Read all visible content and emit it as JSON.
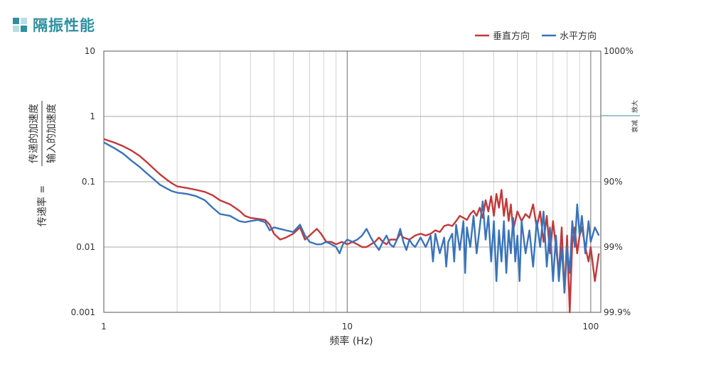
{
  "page": {
    "title": "隔振性能",
    "icon": "grid-squares-icon",
    "colors": {
      "accent": "#2f8f9f",
      "icon_dark": "#2f8f9f",
      "icon_light": "#b9dde3",
      "grid": "#c8c8c8",
      "frame": "#555555"
    }
  },
  "chart_data": {
    "type": "line",
    "title": "",
    "xlabel": "频率 (Hz)",
    "ylabel_left_top": "传递的加速度",
    "ylabel_left_bottom": "输入的加速度",
    "ylabel_left_prefix": "传递率 =",
    "xscale": "log",
    "yscale": "log",
    "xlim": [
      1,
      110
    ],
    "ylim": [
      0.001,
      10
    ],
    "grid": true,
    "legend_position": "top-right",
    "x_ticks": [
      {
        "v": 1,
        "label": "1"
      },
      {
        "v": 10,
        "label": "10"
      },
      {
        "v": 100,
        "label": "100"
      }
    ],
    "y_ticks": [
      {
        "v": 10,
        "label": "10"
      },
      {
        "v": 1,
        "label": "1"
      },
      {
        "v": 0.1,
        "label": "0.1"
      },
      {
        "v": 0.01,
        "label": "0.01"
      },
      {
        "v": 0.001,
        "label": "0.001"
      }
    ],
    "right_ticks": [
      {
        "v": 10,
        "label": "1000%"
      },
      {
        "v": 0.1,
        "label": "90%"
      },
      {
        "v": 0.01,
        "label": "99%"
      },
      {
        "v": 0.001,
        "label": "99.9%"
      }
    ],
    "amplify_label": "放大",
    "attenuate_label": "衰减",
    "series": [
      {
        "name": "垂直方向",
        "color": "#c0393b",
        "points": [
          [
            1.0,
            0.45
          ],
          [
            1.1,
            0.4
          ],
          [
            1.2,
            0.35
          ],
          [
            1.3,
            0.3
          ],
          [
            1.4,
            0.25
          ],
          [
            1.5,
            0.2
          ],
          [
            1.6,
            0.16
          ],
          [
            1.7,
            0.13
          ],
          [
            1.8,
            0.11
          ],
          [
            1.9,
            0.095
          ],
          [
            2.0,
            0.085
          ],
          [
            2.2,
            0.08
          ],
          [
            2.4,
            0.075
          ],
          [
            2.6,
            0.07
          ],
          [
            2.8,
            0.062
          ],
          [
            3.0,
            0.052
          ],
          [
            3.3,
            0.045
          ],
          [
            3.6,
            0.036
          ],
          [
            3.8,
            0.03
          ],
          [
            4.0,
            0.028
          ],
          [
            4.3,
            0.027
          ],
          [
            4.6,
            0.026
          ],
          [
            4.8,
            0.022
          ],
          [
            5.0,
            0.016
          ],
          [
            5.3,
            0.013
          ],
          [
            5.6,
            0.014
          ],
          [
            6.0,
            0.016
          ],
          [
            6.4,
            0.02
          ],
          [
            6.7,
            0.013
          ],
          [
            7.0,
            0.015
          ],
          [
            7.5,
            0.019
          ],
          [
            7.8,
            0.016
          ],
          [
            8.2,
            0.012
          ],
          [
            8.6,
            0.012
          ],
          [
            9.0,
            0.011
          ],
          [
            9.5,
            0.012
          ],
          [
            10.0,
            0.011
          ],
          [
            10.5,
            0.012
          ],
          [
            11.0,
            0.011
          ],
          [
            11.5,
            0.01
          ],
          [
            12.0,
            0.01
          ],
          [
            12.5,
            0.011
          ],
          [
            13.0,
            0.012
          ],
          [
            13.5,
            0.014
          ],
          [
            14.0,
            0.012
          ],
          [
            14.5,
            0.011
          ],
          [
            15.0,
            0.013
          ],
          [
            16.0,
            0.013
          ],
          [
            16.5,
            0.016
          ],
          [
            17.0,
            0.014
          ],
          [
            18.0,
            0.013
          ],
          [
            19.0,
            0.015
          ],
          [
            20.0,
            0.016
          ],
          [
            21.0,
            0.015
          ],
          [
            22.0,
            0.016
          ],
          [
            23.0,
            0.018
          ],
          [
            24.0,
            0.017
          ],
          [
            25.0,
            0.021
          ],
          [
            26.0,
            0.022
          ],
          [
            27.0,
            0.021
          ],
          [
            28.0,
            0.025
          ],
          [
            29.0,
            0.03
          ],
          [
            30.0,
            0.028
          ],
          [
            31.0,
            0.026
          ],
          [
            32.0,
            0.032
          ],
          [
            33.0,
            0.036
          ],
          [
            34.0,
            0.03
          ],
          [
            35.0,
            0.04
          ],
          [
            36.0,
            0.028
          ],
          [
            37.0,
            0.052
          ],
          [
            38.0,
            0.035
          ],
          [
            39.0,
            0.06
          ],
          [
            40.0,
            0.03
          ],
          [
            41.0,
            0.065
          ],
          [
            42.0,
            0.04
          ],
          [
            43.0,
            0.075
          ],
          [
            44.0,
            0.03
          ],
          [
            45.0,
            0.055
          ],
          [
            46.0,
            0.025
          ],
          [
            47.0,
            0.045
          ],
          [
            48.0,
            0.018
          ],
          [
            50.0,
            0.035
          ],
          [
            52.0,
            0.025
          ],
          [
            54.0,
            0.032
          ],
          [
            56.0,
            0.028
          ],
          [
            58.0,
            0.045
          ],
          [
            60.0,
            0.02
          ],
          [
            62.0,
            0.035
          ],
          [
            64.0,
            0.012
          ],
          [
            66.0,
            0.03
          ],
          [
            68.0,
            0.008
          ],
          [
            70.0,
            0.025
          ],
          [
            72.0,
            0.01
          ],
          [
            74.0,
            0.004
          ],
          [
            76.0,
            0.02
          ],
          [
            78.0,
            0.002
          ],
          [
            80.0,
            0.015
          ],
          [
            82.0,
            0.001
          ],
          [
            84.0,
            0.012
          ],
          [
            86.0,
            0.02
          ],
          [
            88.0,
            0.008
          ],
          [
            90.0,
            0.015
          ],
          [
            92.0,
            0.02
          ],
          [
            95.0,
            0.01
          ],
          [
            98.0,
            0.006
          ],
          [
            100.0,
            0.01
          ],
          [
            104.0,
            0.003
          ],
          [
            108.0,
            0.008
          ]
        ]
      },
      {
        "name": "水平方向",
        "color": "#3a73b8",
        "points": [
          [
            1.0,
            0.4
          ],
          [
            1.1,
            0.33
          ],
          [
            1.2,
            0.27
          ],
          [
            1.3,
            0.21
          ],
          [
            1.4,
            0.17
          ],
          [
            1.5,
            0.135
          ],
          [
            1.6,
            0.11
          ],
          [
            1.7,
            0.09
          ],
          [
            1.8,
            0.08
          ],
          [
            1.9,
            0.072
          ],
          [
            2.0,
            0.068
          ],
          [
            2.2,
            0.065
          ],
          [
            2.4,
            0.06
          ],
          [
            2.6,
            0.052
          ],
          [
            2.8,
            0.04
          ],
          [
            3.0,
            0.032
          ],
          [
            3.3,
            0.03
          ],
          [
            3.6,
            0.025
          ],
          [
            3.8,
            0.024
          ],
          [
            4.0,
            0.025
          ],
          [
            4.3,
            0.026
          ],
          [
            4.6,
            0.024
          ],
          [
            4.8,
            0.018
          ],
          [
            5.0,
            0.02
          ],
          [
            5.3,
            0.019
          ],
          [
            5.6,
            0.018
          ],
          [
            6.0,
            0.017
          ],
          [
            6.4,
            0.022
          ],
          [
            6.7,
            0.015
          ],
          [
            7.0,
            0.012
          ],
          [
            7.5,
            0.011
          ],
          [
            7.8,
            0.011
          ],
          [
            8.2,
            0.012
          ],
          [
            8.6,
            0.011
          ],
          [
            9.0,
            0.01
          ],
          [
            9.3,
            0.008
          ],
          [
            9.6,
            0.011
          ],
          [
            10.0,
            0.013
          ],
          [
            10.5,
            0.012
          ],
          [
            11.0,
            0.013
          ],
          [
            11.5,
            0.015
          ],
          [
            12.0,
            0.019
          ],
          [
            12.5,
            0.014
          ],
          [
            13.0,
            0.011
          ],
          [
            13.5,
            0.009
          ],
          [
            14.0,
            0.012
          ],
          [
            14.5,
            0.015
          ],
          [
            15.0,
            0.011
          ],
          [
            15.5,
            0.01
          ],
          [
            16.0,
            0.013
          ],
          [
            16.5,
            0.019
          ],
          [
            17.0,
            0.012
          ],
          [
            17.5,
            0.009
          ],
          [
            18.0,
            0.013
          ],
          [
            18.5,
            0.011
          ],
          [
            19.0,
            0.01
          ],
          [
            20.0,
            0.014
          ],
          [
            21.0,
            0.01
          ],
          [
            22.0,
            0.015
          ],
          [
            22.5,
            0.006
          ],
          [
            23.0,
            0.016
          ],
          [
            24.0,
            0.008
          ],
          [
            25.0,
            0.014
          ],
          [
            25.5,
            0.005
          ],
          [
            26.0,
            0.012
          ],
          [
            27.0,
            0.016
          ],
          [
            27.5,
            0.006
          ],
          [
            28.0,
            0.022
          ],
          [
            29.0,
            0.009
          ],
          [
            30.0,
            0.025
          ],
          [
            30.5,
            0.004
          ],
          [
            31.0,
            0.02
          ],
          [
            32.0,
            0.01
          ],
          [
            33.0,
            0.03
          ],
          [
            34.0,
            0.008
          ],
          [
            35.0,
            0.02
          ],
          [
            36.0,
            0.05
          ],
          [
            37.0,
            0.013
          ],
          [
            38.0,
            0.03
          ],
          [
            39.0,
            0.006
          ],
          [
            40.0,
            0.025
          ],
          [
            41.0,
            0.003
          ],
          [
            42.0,
            0.018
          ],
          [
            43.0,
            0.006
          ],
          [
            44.0,
            0.025
          ],
          [
            45.0,
            0.004
          ],
          [
            46.0,
            0.018
          ],
          [
            47.0,
            0.008
          ],
          [
            48.0,
            0.028
          ],
          [
            49.0,
            0.006
          ],
          [
            50.0,
            0.015
          ],
          [
            51.0,
            0.003
          ],
          [
            52.0,
            0.025
          ],
          [
            54.0,
            0.008
          ],
          [
            56.0,
            0.018
          ],
          [
            58.0,
            0.005
          ],
          [
            60.0,
            0.025
          ],
          [
            62.0,
            0.01
          ],
          [
            64.0,
            0.035
          ],
          [
            66.0,
            0.005
          ],
          [
            68.0,
            0.02
          ],
          [
            70.0,
            0.003
          ],
          [
            72.0,
            0.015
          ],
          [
            74.0,
            0.003
          ],
          [
            76.0,
            0.01
          ],
          [
            78.0,
            0.002
          ],
          [
            80.0,
            0.01
          ],
          [
            82.0,
            0.004
          ],
          [
            84.0,
            0.025
          ],
          [
            86.0,
            0.01
          ],
          [
            88.0,
            0.045
          ],
          [
            90.0,
            0.015
          ],
          [
            92.0,
            0.03
          ],
          [
            95.0,
            0.008
          ],
          [
            98.0,
            0.025
          ],
          [
            100.0,
            0.012
          ],
          [
            104.0,
            0.02
          ],
          [
            108.0,
            0.015
          ]
        ]
      }
    ]
  }
}
